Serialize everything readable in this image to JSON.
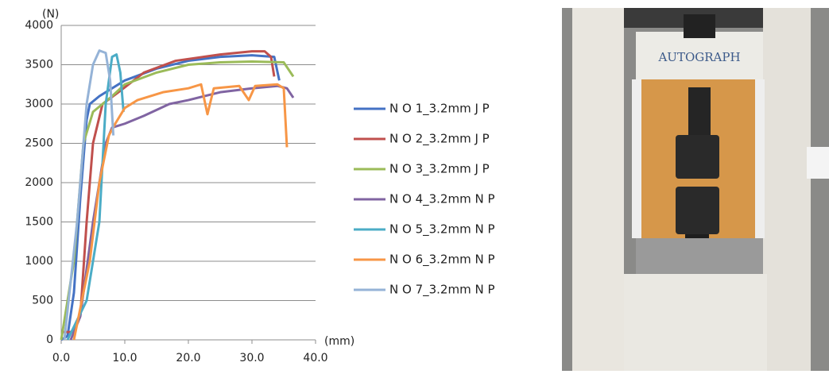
{
  "chart_data": {
    "type": "line",
    "y_unit": "(N)",
    "x_unit": "(mm)",
    "xlim": [
      0,
      40
    ],
    "xticks": [
      {
        "value": 0,
        "label": "0.0"
      },
      {
        "value": 10,
        "label": "10.0"
      },
      {
        "value": 20,
        "label": "20.0"
      },
      {
        "value": 30,
        "label": "30.0"
      },
      {
        "value": 40,
        "label": "40.0"
      }
    ],
    "ylim": [
      0,
      4000
    ],
    "yticks": [
      0,
      500,
      1000,
      1500,
      2000,
      2500,
      3000,
      3500,
      4000
    ],
    "grid": true,
    "legend": "right",
    "series": [
      {
        "name": "N O 1_3.2mm J P",
        "color": "#4472c4",
        "x": [
          0,
          1,
          2,
          3,
          4,
          4.5,
          6,
          10,
          15,
          20,
          25,
          30,
          33.5,
          34.3
        ],
        "values": [
          0,
          50,
          600,
          1800,
          2800,
          3000,
          3100,
          3300,
          3450,
          3550,
          3600,
          3620,
          3600,
          3300
        ]
      },
      {
        "name": "N O 2_3.2mm J P",
        "color": "#c0504d",
        "x": [
          0,
          2,
          3,
          4,
          5,
          6.5,
          9,
          13,
          18,
          25,
          30,
          32,
          33,
          33.5
        ],
        "values": [
          100,
          100,
          300,
          1500,
          2500,
          3000,
          3150,
          3400,
          3550,
          3630,
          3670,
          3670,
          3600,
          3350
        ]
      },
      {
        "name": "N O 3_3.2mm J P",
        "color": "#9bbb59",
        "x": [
          0,
          2,
          3.5,
          5,
          8,
          10,
          15,
          20,
          25,
          30,
          35,
          36.5
        ],
        "values": [
          0,
          1000,
          2500,
          2900,
          3100,
          3250,
          3400,
          3500,
          3530,
          3540,
          3530,
          3350
        ]
      },
      {
        "name": "N O 4_3.2mm N P",
        "color": "#8064a2",
        "x": [
          1.5,
          3,
          5,
          7,
          8,
          10,
          13,
          17,
          20,
          25,
          30,
          34,
          35.5,
          36.5
        ],
        "values": [
          0,
          300,
          1500,
          2500,
          2700,
          2750,
          2850,
          3000,
          3050,
          3150,
          3200,
          3230,
          3200,
          3080
        ]
      },
      {
        "name": "N O 5_3.2mm N P",
        "color": "#4bacc6",
        "x": [
          1,
          4,
          6,
          7,
          8,
          8.7,
          9.3,
          9.8
        ],
        "values": [
          0,
          500,
          1500,
          3000,
          3600,
          3630,
          3400,
          2900
        ]
      },
      {
        "name": "N O 6_3.2mm N P",
        "color": "#f79646",
        "x": [
          2,
          4.5,
          6,
          7.5,
          8.5,
          10,
          12,
          16,
          20,
          22,
          23,
          24,
          28,
          29.5,
          30.5,
          34,
          35,
          35.5
        ],
        "values": [
          0,
          1000,
          2000,
          2600,
          2750,
          2950,
          3050,
          3150,
          3200,
          3250,
          2870,
          3200,
          3230,
          3050,
          3230,
          3250,
          3200,
          2450
        ]
      },
      {
        "name": "N O 7_3.2mm N P",
        "color": "#95b3d7",
        "x": [
          0.5,
          2.5,
          4,
          5,
          6,
          7,
          7.7,
          8.2
        ],
        "values": [
          0,
          1500,
          3000,
          3500,
          3680,
          3650,
          3300,
          2600
        ]
      }
    ]
  },
  "photo": {
    "label": "AUTOGRAPH"
  }
}
